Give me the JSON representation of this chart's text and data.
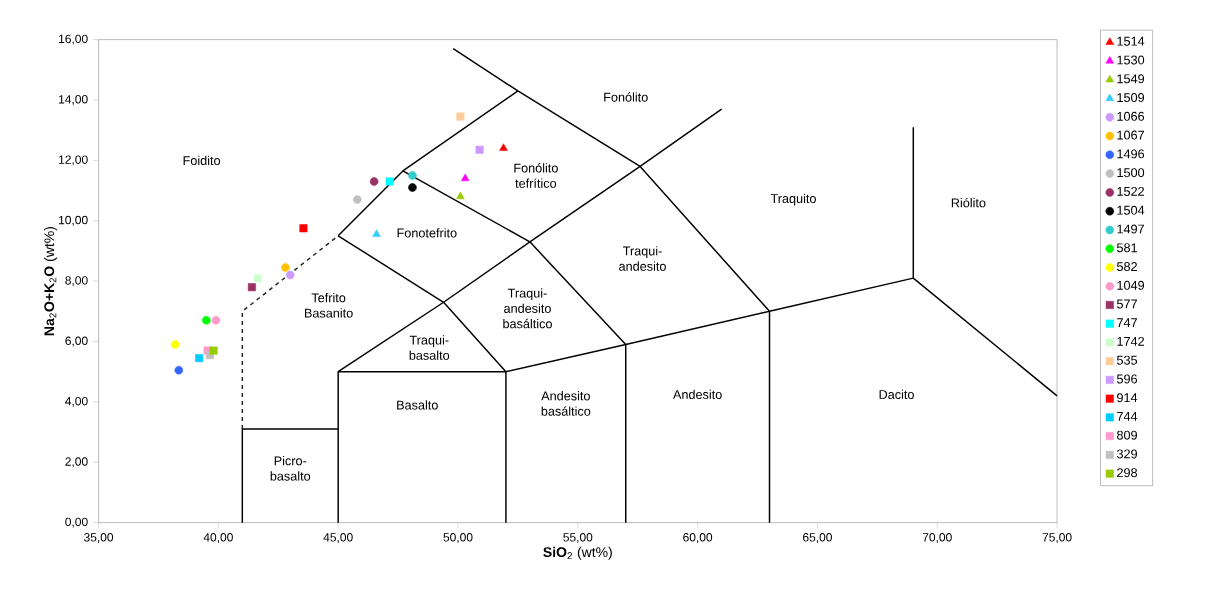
{
  "chart_data": {
    "type": "scatter",
    "xlabel": "**SiO**$_{2}$ (wt%)",
    "ylabel": "**Na**$_{2}$**O+K**$_{2}$**O** (wt%)",
    "xlim": [
      35,
      75
    ],
    "ylim": [
      0,
      16
    ],
    "xticks": [
      {
        "value": 35,
        "label": "35,00"
      },
      {
        "value": 40,
        "label": "40,00"
      },
      {
        "value": 45,
        "label": "45,00"
      },
      {
        "value": 50,
        "label": "50,00"
      },
      {
        "value": 55,
        "label": "55,00"
      },
      {
        "value": 60,
        "label": "60,00"
      },
      {
        "value": 65,
        "label": "65,00"
      },
      {
        "value": 70,
        "label": "70,00"
      },
      {
        "value": 75,
        "label": "75,00"
      }
    ],
    "yticks": [
      {
        "value": 0,
        "label": "0,00"
      },
      {
        "value": 2,
        "label": "2,00"
      },
      {
        "value": 4,
        "label": "4,00"
      },
      {
        "value": 6,
        "label": "6,00"
      },
      {
        "value": 8,
        "label": "8,00"
      },
      {
        "value": 10,
        "label": "10,00"
      },
      {
        "value": 12,
        "label": "12,00"
      },
      {
        "value": 14,
        "label": "14,00"
      },
      {
        "value": 16,
        "label": "16,00"
      }
    ],
    "grid": false,
    "legend": "right",
    "series": [
      {
        "type": "line",
        "color": "#000000",
        "marker": "none",
        "line_style": "solid",
        "x": [
          41,
          41,
          45,
          null,
          45,
          45,
          52,
          52,
          null,
          52,
          57,
          63,
          69,
          75,
          null,
          57,
          57,
          null,
          63,
          63,
          null,
          69,
          69,
          null,
          45,
          49.4,
          52,
          null,
          45,
          49.4,
          53,
          57,
          null,
          45,
          47.7,
          52.5,
          57.6,
          61,
          null,
          49.8,
          52.5,
          null,
          47.7,
          53,
          57.6,
          63
        ],
        "values": [
          0,
          3.1,
          3.1,
          null,
          0,
          5,
          5,
          0,
          null,
          5,
          5.9,
          7,
          8.1,
          4.2,
          null,
          0,
          5.9,
          null,
          0,
          7,
          null,
          8.1,
          13.1,
          null,
          5,
          7.3,
          5,
          null,
          9.5,
          7.3,
          9.3,
          5.9,
          null,
          9.5,
          11.65,
          14.3,
          11.8,
          13.7,
          null,
          15.7,
          14.3,
          null,
          11.65,
          9.3,
          11.8,
          7
        ]
      },
      {
        "type": "line",
        "color": "#262626",
        "marker": "none",
        "line_style": "dashed",
        "x": [
          41,
          41,
          45
        ],
        "values": [
          3.1,
          7,
          9.5
        ]
      },
      {
        "name": "1514",
        "color": "#ff0000",
        "marker": "triangle",
        "x": [
          51.9
        ],
        "values": [
          12.4
        ]
      },
      {
        "name": "1530",
        "color": "#ff00ff",
        "marker": "triangle",
        "x": [
          50.3
        ],
        "values": [
          11.4
        ]
      },
      {
        "name": "1549",
        "color": "#99cc00",
        "marker": "triangle",
        "x": [
          50.1
        ],
        "values": [
          10.8
        ]
      },
      {
        "name": "1509",
        "color": "#33ccff",
        "marker": "triangle",
        "x": [
          46.6
        ],
        "values": [
          9.55
        ]
      },
      {
        "name": "1066",
        "color": "#cc99ff",
        "marker": "circle",
        "x": [
          43.0
        ],
        "values": [
          8.2
        ]
      },
      {
        "name": "1067",
        "color": "#ffc000",
        "marker": "circle",
        "x": [
          42.8
        ],
        "values": [
          8.45
        ]
      },
      {
        "name": "1496",
        "color": "#3366ff",
        "marker": "circle",
        "x": [
          38.35
        ],
        "values": [
          5.05
        ]
      },
      {
        "name": "1500",
        "color": "#c0c0c0",
        "marker": "circle",
        "x": [
          45.8
        ],
        "values": [
          10.7
        ]
      },
      {
        "name": "1522",
        "color": "#993366",
        "marker": "circle",
        "x": [
          46.5
        ],
        "values": [
          11.3
        ]
      },
      {
        "name": "1504",
        "color": "#000000",
        "marker": "circle",
        "x": [
          48.1
        ],
        "values": [
          11.1
        ]
      },
      {
        "name": "1497",
        "color": "#33cccc",
        "marker": "circle",
        "x": [
          48.1
        ],
        "values": [
          11.5
        ]
      },
      {
        "name": "581",
        "color": "#00ff00",
        "marker": "circle",
        "x": [
          39.5
        ],
        "values": [
          6.7
        ]
      },
      {
        "name": "582",
        "color": "#ffff00",
        "marker": "circle",
        "x": [
          38.2
        ],
        "values": [
          5.9
        ]
      },
      {
        "name": "1049",
        "color": "#ff99cc",
        "marker": "circle",
        "x": [
          39.9
        ],
        "values": [
          6.7
        ]
      },
      {
        "name": "577",
        "color": "#993366",
        "marker": "square",
        "x": [
          41.4
        ],
        "values": [
          7.8
        ]
      },
      {
        "name": "747",
        "color": "#00ffff",
        "marker": "square",
        "x": [
          47.15
        ],
        "values": [
          11.3
        ]
      },
      {
        "name": "1742",
        "color": "#ccffcc",
        "marker": "square",
        "x": [
          41.65
        ],
        "values": [
          8.1
        ]
      },
      {
        "name": "535",
        "color": "#ffcc99",
        "marker": "square",
        "x": [
          50.1
        ],
        "values": [
          13.45
        ]
      },
      {
        "name": "596",
        "color": "#cc99ff",
        "marker": "square",
        "x": [
          50.9
        ],
        "values": [
          12.35
        ]
      },
      {
        "name": "914",
        "color": "#ff0000",
        "marker": "square",
        "x": [
          43.55
        ],
        "values": [
          9.75
        ]
      },
      {
        "name": "744",
        "color": "#00ccff",
        "marker": "square",
        "x": [
          39.2
        ],
        "values": [
          5.45
        ]
      },
      {
        "name": "809",
        "color": "#ff99cc",
        "marker": "square",
        "x": [
          39.55
        ],
        "values": [
          5.7
        ]
      },
      {
        "name": "329",
        "color": "#c0c0c0",
        "marker": "square",
        "x": [
          39.65
        ],
        "values": [
          5.55
        ]
      },
      {
        "name": "298",
        "color": "#99cc00",
        "marker": "square",
        "x": [
          39.8
        ],
        "values": [
          5.7
        ]
      }
    ],
    "annotations": [
      "Foidito",
      "Fonólito",
      "Fonólito tefrítico",
      "Fonotefrito",
      "Traquito",
      "Riólito",
      "Traqui- andesito",
      "Traqui- andesito basáltico",
      "Tefrito Basanito",
      "Traqui- basalto",
      "Basalto",
      "Andesito basáltico",
      "Andesito",
      "Dacito",
      "Picro- basalto"
    ]
  }
}
